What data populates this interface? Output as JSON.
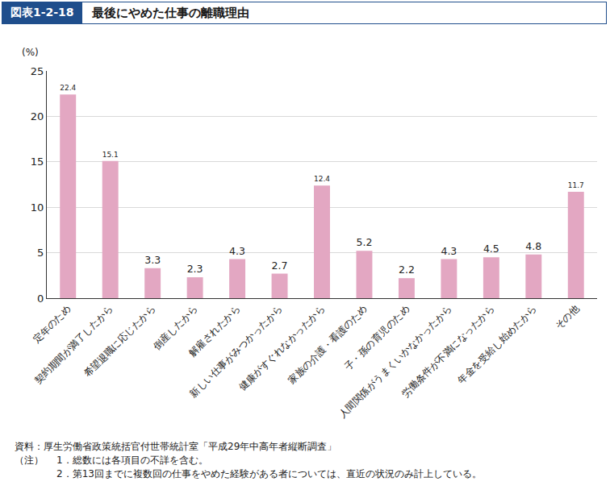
{
  "chart_data": {
    "type": "bar",
    "figure_label": "図表1-2-18",
    "title": "最後にやめた仕事の離職理由",
    "ylabel": "(%)",
    "categories": [
      "定年のため",
      "契約期間が満了したから",
      "希望退職に応じたから",
      "倒産したから",
      "解雇されたから",
      "新しい仕事がみつかったから",
      "健康がすぐれなかったから",
      "家族の介護・看護のため",
      "子・孫の育児のため",
      "人間関係がうまくいかなかったから",
      "労働条件が不満になったから",
      "年金を受給し始めたから",
      "その他"
    ],
    "values": [
      22.4,
      15.1,
      3.3,
      2.3,
      4.3,
      2.7,
      12.4,
      5.2,
      2.2,
      4.3,
      4.5,
      4.8,
      11.7
    ],
    "color": "#e3a7c2",
    "ylim": [
      0,
      25
    ],
    "yticks": [
      0,
      5,
      10,
      15,
      20,
      25
    ],
    "grid": true,
    "data_labels": true,
    "source": "資料：厚生労働省政策統括官付世帯統計室「平成29年中高年者縦断調査」",
    "notes_label": "（注）",
    "notes": [
      "1．総数には各項目の不詳を含む。",
      "2．第13回までに複数回の仕事をやめた経験がある者については、直近の状況のみ計上している。"
    ]
  }
}
